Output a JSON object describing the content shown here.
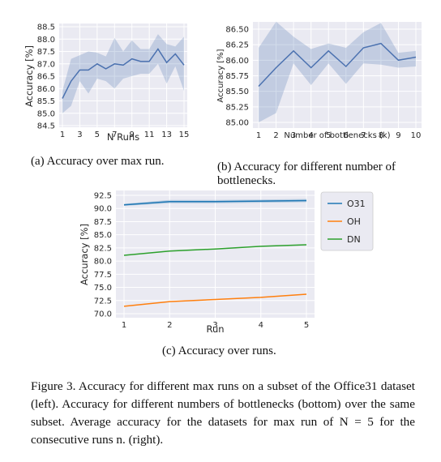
{
  "chart_data": [
    {
      "type": "line",
      "xlabel": "N Runs",
      "ylabel": "Accuracy [%]",
      "x": [
        1,
        2,
        3,
        4,
        5,
        6,
        7,
        8,
        9,
        10,
        11,
        12,
        13,
        14,
        15
      ],
      "xticks": [
        1,
        3,
        5,
        7,
        9,
        11,
        13,
        15
      ],
      "yticks": [
        "84.5",
        "85.0",
        "85.5",
        "86.0",
        "86.5",
        "87.0",
        "87.5",
        "88.0",
        "88.5"
      ],
      "ylim": [
        84.5,
        88.5
      ],
      "grid": true,
      "series": [
        {
          "values": [
            85.6,
            86.3,
            86.75,
            86.75,
            87.0,
            86.8,
            87.0,
            86.95,
            87.2,
            87.1,
            87.1,
            87.6,
            87.05,
            87.4,
            86.95
          ],
          "band_low": [
            85.0,
            85.3,
            86.3,
            85.8,
            86.4,
            86.3,
            86.0,
            86.4,
            86.5,
            86.6,
            86.6,
            87.0,
            86.2,
            86.9,
            85.9
          ],
          "band_high": [
            85.9,
            87.2,
            87.35,
            87.5,
            87.45,
            87.3,
            88.05,
            87.5,
            87.95,
            87.6,
            87.6,
            88.2,
            87.8,
            87.7,
            88.1
          ],
          "color": "#4c72b0"
        }
      ]
    },
    {
      "type": "line",
      "xlabel": "Number of bottlenecks (k)",
      "ylabel": "Accuracy [%]",
      "x": [
        1,
        2,
        3,
        4,
        5,
        6,
        7,
        8,
        9,
        10
      ],
      "xticks": [
        1,
        2,
        3,
        4,
        5,
        6,
        7,
        8,
        9,
        10
      ],
      "yticks": [
        "85.00",
        "85.25",
        "85.50",
        "85.75",
        "86.00",
        "86.25",
        "86.50"
      ],
      "ylim": [
        85.0,
        86.5
      ],
      "grid": true,
      "series": [
        {
          "values": [
            85.58,
            85.88,
            86.15,
            85.88,
            86.15,
            85.9,
            86.2,
            86.27,
            86.0,
            86.05
          ],
          "band_low": [
            85.0,
            85.15,
            85.95,
            85.6,
            85.95,
            85.62,
            85.95,
            85.93,
            85.88,
            85.9
          ],
          "band_high": [
            86.2,
            86.62,
            86.38,
            86.18,
            86.27,
            86.2,
            86.45,
            86.6,
            86.12,
            86.15
          ],
          "color": "#4c72b0"
        }
      ]
    },
    {
      "type": "line",
      "xlabel": "Run",
      "ylabel": "Accuracy [%]",
      "x": [
        1,
        2,
        3,
        4,
        5
      ],
      "xticks": [
        1,
        2,
        3,
        4,
        5
      ],
      "yticks": [
        "70.0",
        "72.5",
        "75.0",
        "77.5",
        "80.0",
        "82.5",
        "85.0",
        "87.5",
        "90.0",
        "92.5"
      ],
      "ylim": [
        70.0,
        92.5
      ],
      "grid": true,
      "legend": "right",
      "series": [
        {
          "name": "O31",
          "values": [
            90.7,
            91.3,
            91.3,
            91.4,
            91.5
          ],
          "band_low": [
            90.5,
            91.0,
            91.0,
            91.1,
            91.2
          ],
          "band_high": [
            90.9,
            91.6,
            91.6,
            91.7,
            91.8
          ],
          "color": "#1f77b4"
        },
        {
          "name": "OH",
          "values": [
            71.4,
            72.3,
            72.7,
            73.1,
            73.7
          ],
          "color": "#ff7f0e"
        },
        {
          "name": "DN",
          "values": [
            81.1,
            81.9,
            82.3,
            82.8,
            83.1
          ],
          "color": "#2ca02c"
        }
      ]
    }
  ],
  "captions": {
    "a": "(a) Accuracy over max run.",
    "b1": "(b) Accuracy for different number of",
    "b2": "bottlenecks.",
    "c": "(c) Accuracy over runs.",
    "figure": "Figure 3. Accuracy for different max runs on a subset of the Office31 dataset (left). Accuracy for different numbers of bottlenecks (bottom) over the same subset. Average accuracy for the datasets for max run of N = 5 for the consecutive runs n. (right)."
  }
}
